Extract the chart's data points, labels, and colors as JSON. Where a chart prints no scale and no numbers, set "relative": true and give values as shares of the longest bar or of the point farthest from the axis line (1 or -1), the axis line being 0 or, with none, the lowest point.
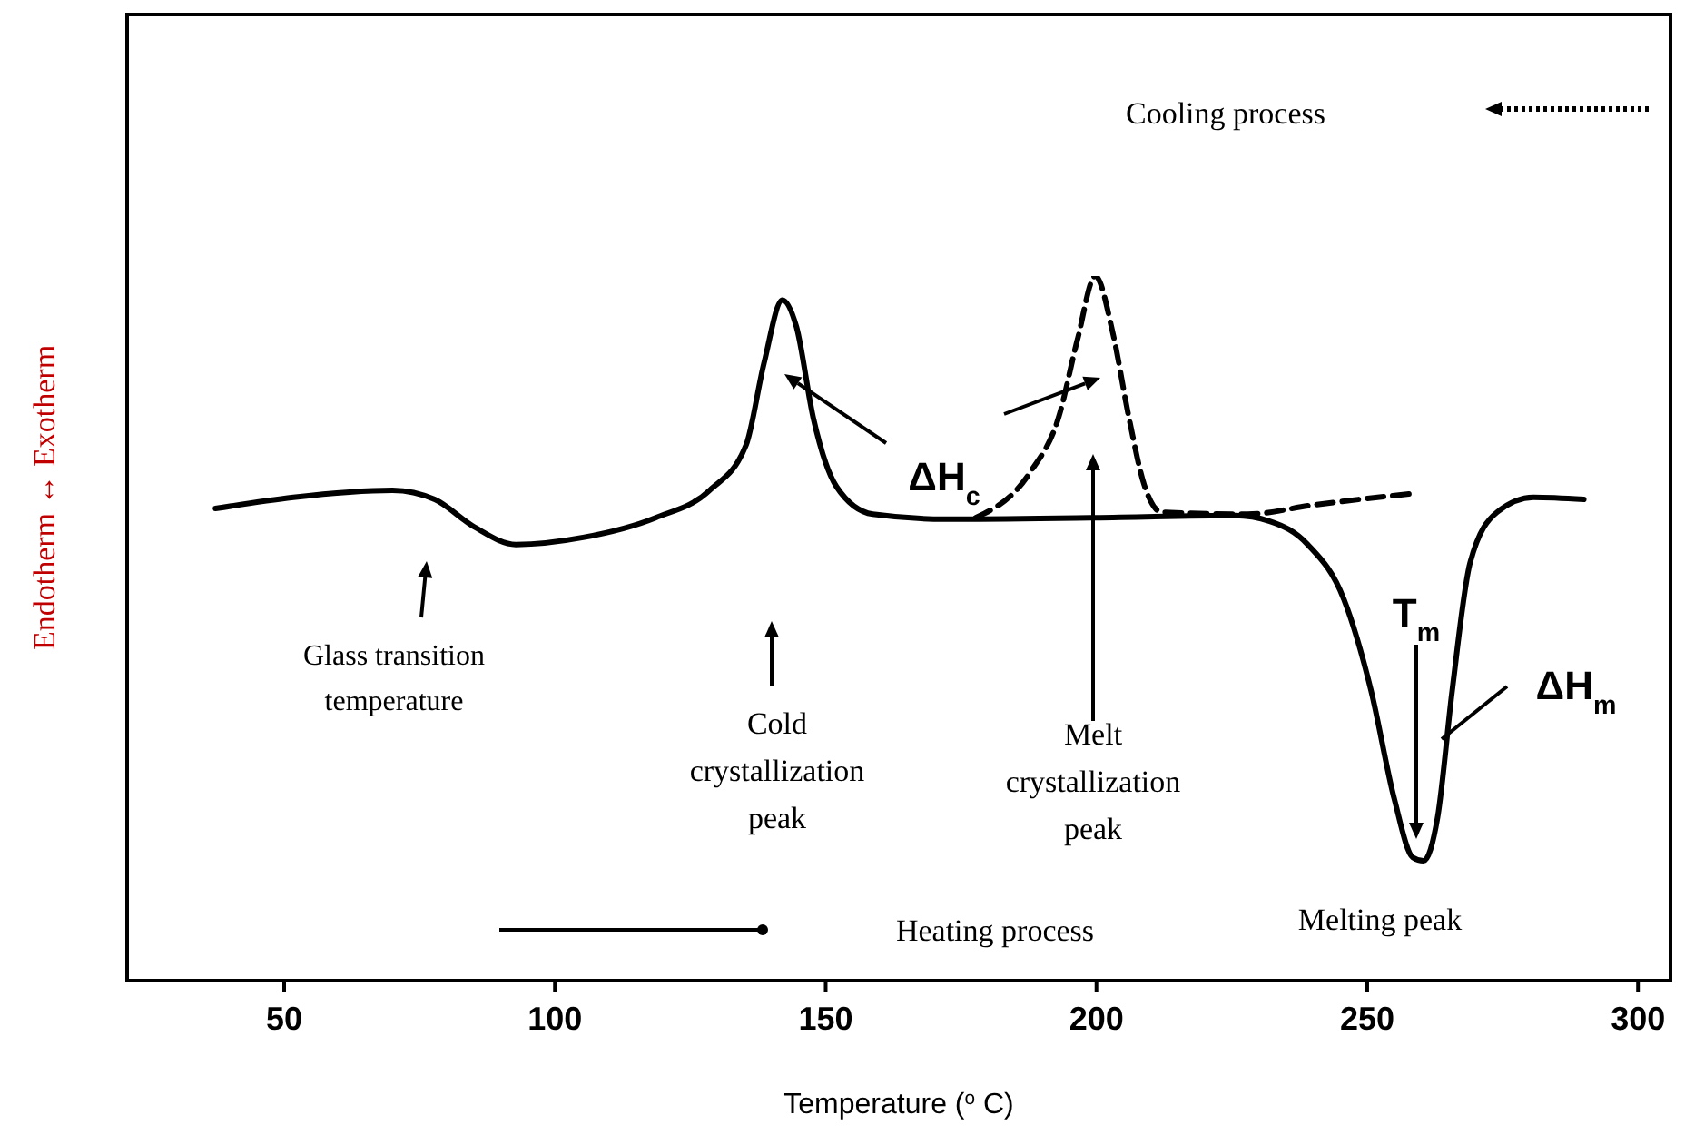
{
  "chart_data": {
    "type": "line",
    "relative": true,
    "xlabel": "Temperature ($^{o}$ C)",
    "ylabel": "Endotherm ↔ Exotherm",
    "xlim": [
      21,
      306
    ],
    "xticks": [
      50,
      100,
      150,
      200,
      250,
      300
    ],
    "series": [
      {
        "color": "#000000",
        "line_style": "solid",
        "x": [
          37.3,
          51.7,
          70,
          77.8,
          85.1,
          92.8,
          105.2,
          118.6,
          128.6,
          135.3,
          138.6,
          142,
          144.6,
          147.7,
          152,
          158.7,
          172,
          198.8,
          225.6,
          232,
          239,
          245.7,
          250.7,
          255,
          258.4,
          260.4,
          263,
          265.7,
          269,
          274,
          280.7,
          290
        ],
        "values": [
          0.67,
          0.686,
          0.696,
          0.683,
          0.644,
          0.619,
          0.629,
          0.657,
          0.696,
          0.76,
          0.876,
          0.966,
          0.928,
          0.799,
          0.701,
          0.662,
          0.655,
          0.657,
          0.66,
          0.652,
          0.619,
          0.541,
          0.412,
          0.258,
          0.175,
          0.17,
          0.232,
          0.412,
          0.593,
          0.665,
          0.686,
          0.683
        ]
      },
      {
        "color": "#000000",
        "line_style": "dashed",
        "x": [
          177.7,
          187.8,
          193,
          196.5,
          199.8,
          203,
          206,
          208.8,
          212,
          227.9,
          240,
          258
        ],
        "values": [
          0.657,
          0.722,
          0.799,
          0.91,
          1.0,
          0.92,
          0.799,
          0.704,
          0.665,
          0.662,
          0.675,
          0.691
        ]
      }
    ],
    "annotations": [
      "Cooling process",
      "Heating process",
      "Glass transition temperature",
      "Cold crystallization peak",
      "Melt crystallization peak",
      "ΔH$_{c}$",
      "T$_{m}$",
      "ΔH$_{m}$",
      "Melting peak"
    ]
  }
}
